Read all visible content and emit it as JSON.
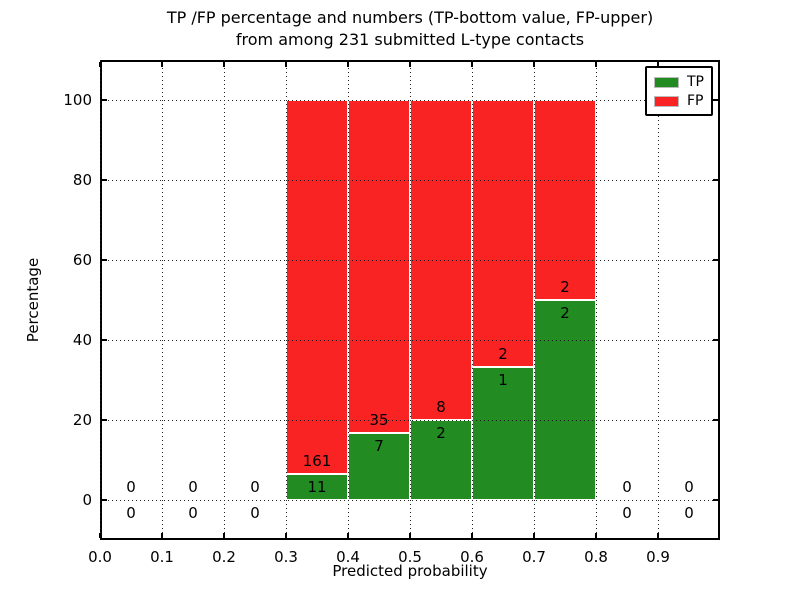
{
  "chart_data": {
    "type": "bar",
    "stacked": true,
    "title_line1": "TP /FP percentage and numbers (TP-bottom value, FP-upper)",
    "title_line2": "from among 231 submitted L-type contacts",
    "xlabel": "Predicted probability",
    "ylabel": "Percentage",
    "total_submitted_contacts": 231,
    "xlim": [
      0.0,
      1.0
    ],
    "ylim": [
      -10,
      110
    ],
    "grid": "dotted, drawn above bars",
    "x_ticks": [
      {
        "value": 0.0,
        "label": "0.0"
      },
      {
        "value": 0.1,
        "label": "0.1"
      },
      {
        "value": 0.2,
        "label": "0.2"
      },
      {
        "value": 0.3,
        "label": "0.3"
      },
      {
        "value": 0.4,
        "label": "0.4"
      },
      {
        "value": 0.5,
        "label": "0.5"
      },
      {
        "value": 0.6,
        "label": "0.6"
      },
      {
        "value": 0.7,
        "label": "0.7"
      },
      {
        "value": 0.8,
        "label": "0.8"
      },
      {
        "value": 0.9,
        "label": "0.9"
      }
    ],
    "y_ticks": [
      {
        "value": 0,
        "label": "0"
      },
      {
        "value": 20,
        "label": "20"
      },
      {
        "value": 40,
        "label": "40"
      },
      {
        "value": 60,
        "label": "60"
      },
      {
        "value": 80,
        "label": "80"
      },
      {
        "value": 100,
        "label": "100"
      }
    ],
    "colors": {
      "tp": "#228b22",
      "fp": "#fa2323"
    },
    "legend": {
      "position": "upper right",
      "entries": [
        {
          "label": "TP",
          "color_key": "tp"
        },
        {
          "label": "FP",
          "color_key": "fp"
        }
      ]
    },
    "bins": [
      {
        "range": [
          0.0,
          0.1
        ],
        "tp_count": 0,
        "fp_count": 0,
        "tp_pct": 0,
        "fp_pct": 0
      },
      {
        "range": [
          0.1,
          0.2
        ],
        "tp_count": 0,
        "fp_count": 0,
        "tp_pct": 0,
        "fp_pct": 0
      },
      {
        "range": [
          0.2,
          0.3
        ],
        "tp_count": 0,
        "fp_count": 0,
        "tp_pct": 0,
        "fp_pct": 0
      },
      {
        "range": [
          0.3,
          0.4
        ],
        "tp_count": 11,
        "fp_count": 161,
        "tp_pct": 6.4,
        "fp_pct": 93.6
      },
      {
        "range": [
          0.4,
          0.5
        ],
        "tp_count": 7,
        "fp_count": 35,
        "tp_pct": 16.67,
        "fp_pct": 83.33
      },
      {
        "range": [
          0.5,
          0.6
        ],
        "tp_count": 2,
        "fp_count": 8,
        "tp_pct": 20.0,
        "fp_pct": 80.0
      },
      {
        "range": [
          0.6,
          0.7
        ],
        "tp_count": 1,
        "fp_count": 2,
        "tp_pct": 33.33,
        "fp_pct": 66.67
      },
      {
        "range": [
          0.7,
          0.8
        ],
        "tp_count": 2,
        "fp_count": 2,
        "tp_pct": 50.0,
        "fp_pct": 50.0
      },
      {
        "range": [
          0.8,
          0.9
        ],
        "tp_count": 0,
        "fp_count": 0,
        "tp_pct": 0,
        "fp_pct": 0
      },
      {
        "range": [
          0.9,
          1.0
        ],
        "tp_count": 0,
        "fp_count": 0,
        "tp_pct": 0,
        "fp_pct": 0
      }
    ]
  }
}
